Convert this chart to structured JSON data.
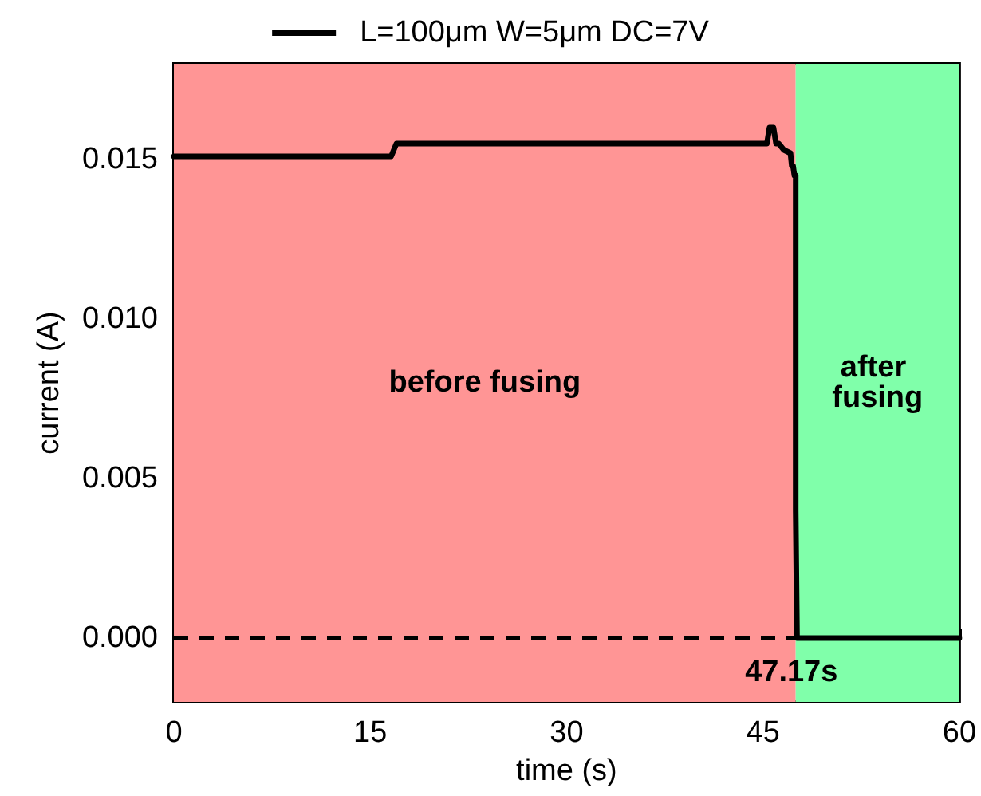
{
  "chart_data": {
    "type": "line",
    "xlabel": "time (s)",
    "ylabel": "current (A)",
    "xlim": [
      0,
      60
    ],
    "xticks": [
      0,
      15,
      30,
      45,
      60
    ],
    "ylim": [
      -0.002,
      0.018
    ],
    "yticks": [
      {
        "value": 0,
        "label": "0.000"
      },
      {
        "value": 0.005,
        "label": "0.005"
      },
      {
        "value": 0.01,
        "label": "0.010"
      },
      {
        "value": 0.015,
        "label": "0.015"
      }
    ],
    "series": [
      {
        "name": "L=100μm W=5μm DC=7V",
        "color": "#000000",
        "x": [
          0,
          16.6,
          17,
          45,
          45.3,
          45.5,
          45.8,
          46,
          46.2,
          46.6,
          47.1,
          47.2,
          47.3,
          47.4,
          47.5,
          47.5,
          47.6,
          60
        ],
        "values": [
          0.0151,
          0.0151,
          0.0155,
          0.0155,
          0.0155,
          0.016,
          0.016,
          0.0155,
          0.0155,
          0.0153,
          0.0152,
          0.0148,
          0.0148,
          0.0145,
          0.0145,
          0.004,
          0,
          0
        ]
      }
    ],
    "bands": [
      {
        "axis": "x",
        "from": 0,
        "to": 47.5,
        "label": "before fusing",
        "color": "#ff9595"
      },
      {
        "axis": "x",
        "from": 47.5,
        "to": 60,
        "label": "after fusing",
        "color": "#80ffaa"
      }
    ],
    "ref_lines": [
      {
        "axis": "y",
        "value": 0,
        "line_style": "dashed",
        "color": "#000000"
      }
    ],
    "annotations": [
      {
        "text": "47.17s",
        "x": 47.17,
        "y": 0
      }
    ],
    "legend": "top",
    "grid": false,
    "marker": "none",
    "line_style": "solid"
  }
}
